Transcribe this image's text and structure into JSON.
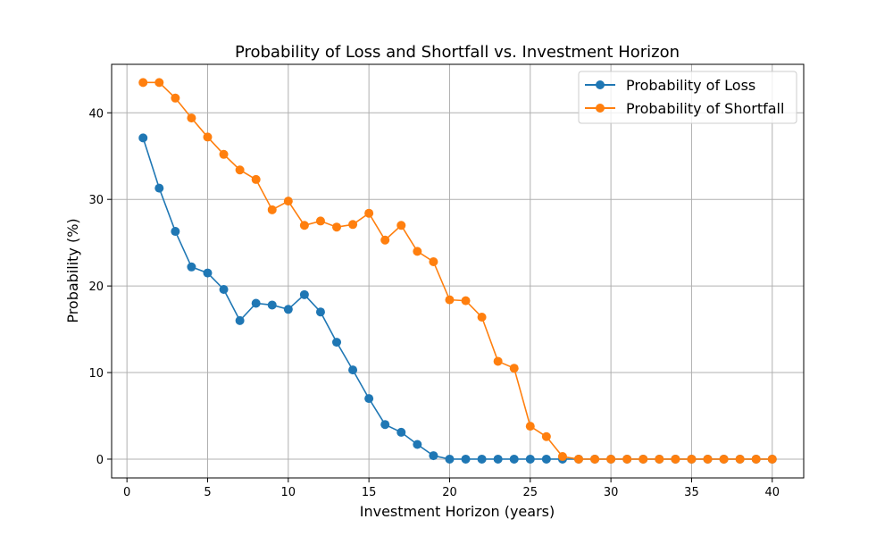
{
  "chart_data": {
    "type": "line",
    "title": "Probability of Loss and Shortfall vs. Investment Horizon",
    "xlabel": "Investment Horizon (years)",
    "ylabel": "Probability (%)",
    "xlim": [
      -0.95,
      41.95
    ],
    "ylim": [
      -2.17,
      45.6
    ],
    "xticks": [
      0,
      5,
      10,
      15,
      20,
      25,
      30,
      35,
      40
    ],
    "yticks": [
      0,
      10,
      20,
      30,
      40
    ],
    "grid": true,
    "legend_position": "top-right",
    "x": [
      1,
      2,
      3,
      4,
      5,
      6,
      7,
      8,
      9,
      10,
      11,
      12,
      13,
      14,
      15,
      16,
      17,
      18,
      19,
      20,
      21,
      22,
      23,
      24,
      25,
      26,
      27,
      28,
      29,
      30,
      31,
      32,
      33,
      34,
      35,
      36,
      37,
      38,
      39,
      40
    ],
    "series": [
      {
        "name": "Probability of Loss",
        "color": "#1f77b4",
        "values": [
          37.1,
          31.3,
          26.3,
          22.2,
          21.5,
          19.6,
          16.0,
          18.0,
          17.8,
          17.3,
          19.0,
          17.0,
          13.5,
          10.3,
          7.0,
          4.0,
          3.1,
          1.7,
          0.4,
          0.0,
          0.0,
          0.0,
          0.0,
          0.0,
          0.0,
          0.0,
          0.0,
          0.0,
          0.0,
          0.0,
          0.0,
          0.0,
          0.0,
          0.0,
          0.0,
          0.0,
          0.0,
          0.0,
          0.0,
          0.0
        ]
      },
      {
        "name": "Probability of Shortfall",
        "color": "#ff7f0e",
        "values": [
          43.5,
          43.5,
          41.7,
          39.4,
          37.2,
          35.2,
          33.4,
          32.3,
          28.8,
          29.8,
          27.0,
          27.5,
          26.8,
          27.1,
          28.4,
          25.3,
          27.0,
          24.0,
          22.8,
          18.4,
          18.3,
          16.4,
          11.3,
          10.5,
          3.8,
          2.6,
          0.3,
          0.0,
          0.0,
          0.0,
          0.0,
          0.0,
          0.0,
          0.0,
          0.0,
          0.0,
          0.0,
          0.0,
          0.0,
          0.0
        ]
      }
    ]
  }
}
